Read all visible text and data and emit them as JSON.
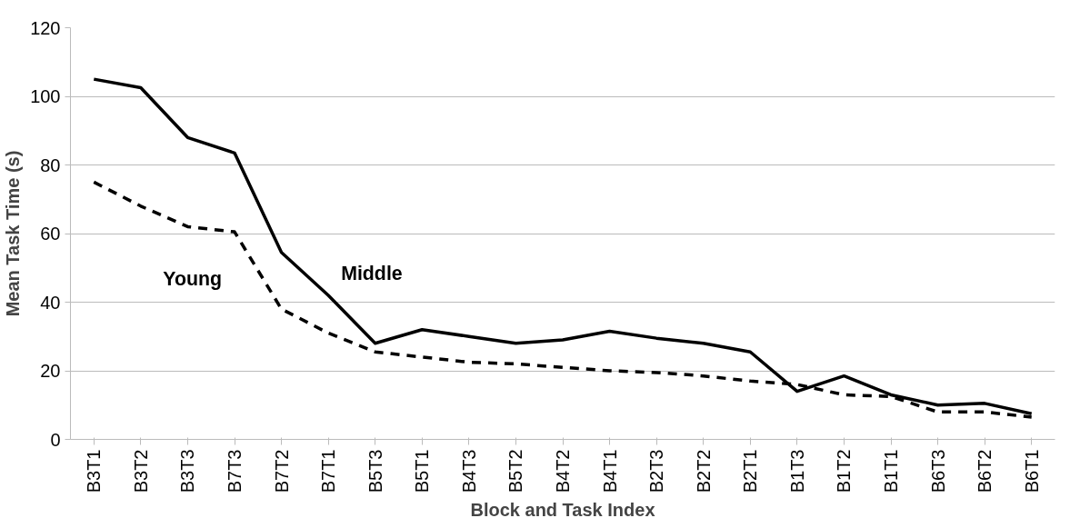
{
  "chart_data": {
    "type": "line",
    "xlabel": "Block and Task Index",
    "ylabel": "Mean Task Time (s)",
    "categories": [
      "B3T1",
      "B3T2",
      "B3T3",
      "B7T3",
      "B7T2",
      "B7T1",
      "B5T3",
      "B5T1",
      "B4T3",
      "B5T2",
      "B4T2",
      "B4T1",
      "B2T3",
      "B2T2",
      "B2T1",
      "B1T3",
      "B1T2",
      "B1T1",
      "B6T3",
      "B6T2",
      "B6T1"
    ],
    "series": [
      {
        "name": "Middle",
        "color": "#000000",
        "line_style": "solid",
        "values": [
          105,
          102.5,
          88,
          83.5,
          54.5,
          42,
          28,
          32,
          30,
          28,
          29,
          31.5,
          29.5,
          28,
          25.5,
          14,
          18.5,
          13,
          10,
          10.5,
          7.5
        ]
      },
      {
        "name": "Young",
        "color": "#000000",
        "line_style": "dashed",
        "values": [
          75,
          68,
          62,
          60.5,
          38,
          31,
          25.5,
          24,
          22.5,
          22,
          21,
          20,
          19.5,
          18.5,
          17,
          16,
          13,
          12.5,
          8,
          8,
          6.5
        ]
      }
    ],
    "ylim": [
      0,
      120
    ],
    "yticks": [
      0,
      20,
      40,
      60,
      80,
      100,
      120
    ],
    "grid": "y",
    "marker": "none"
  }
}
